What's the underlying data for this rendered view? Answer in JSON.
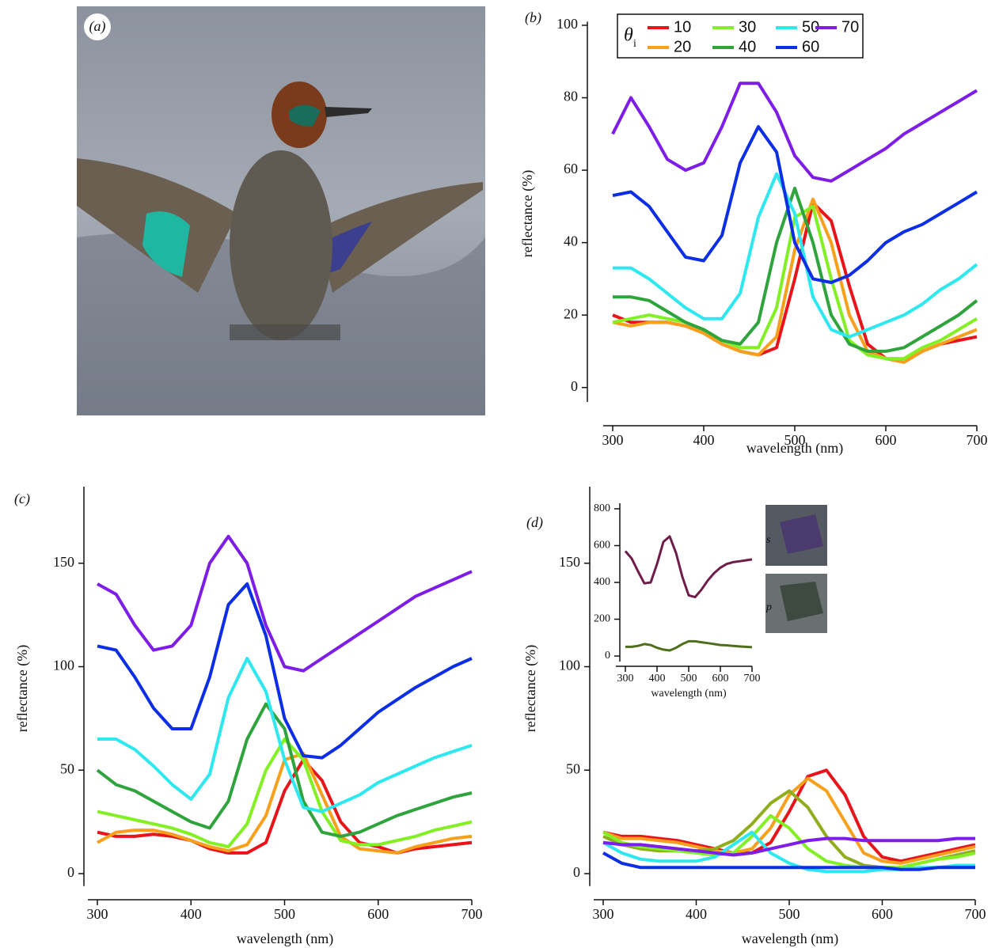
{
  "photo_label": "(a)",
  "chart_data": [
    {
      "type": "line",
      "label": "(b)",
      "xlabel": "wavelength (nm)",
      "ylabel": "reflectance (%)",
      "legend_title": "θ",
      "legend_title_subscript": "i",
      "xlim": [
        300,
        700
      ],
      "ylim": [
        -4,
        101
      ],
      "xticks": [
        300,
        400,
        500,
        600,
        700
      ],
      "yticks": [
        0,
        20,
        40,
        60,
        80,
        100
      ],
      "x": [
        300,
        320,
        340,
        360,
        380,
        400,
        420,
        440,
        460,
        480,
        500,
        520,
        540,
        560,
        580,
        600,
        620,
        640,
        660,
        680,
        700
      ],
      "series": [
        {
          "name": "10",
          "color": "#e8141a",
          "values": [
            20,
            18,
            18,
            18,
            17,
            15,
            12,
            10,
            9,
            11,
            30,
            51,
            46,
            28,
            12,
            8,
            7,
            10,
            12,
            13,
            14
          ]
        },
        {
          "name": "20",
          "color": "#f8a01c",
          "values": [
            18,
            17,
            18,
            18,
            17,
            15,
            12,
            10,
            9,
            14,
            38,
            52,
            40,
            20,
            10,
            8,
            7,
            10,
            12,
            14,
            16
          ]
        },
        {
          "name": "30",
          "color": "#82f023",
          "values": [
            18,
            19,
            20,
            19,
            18,
            16,
            13,
            11,
            11,
            22,
            47,
            50,
            30,
            13,
            9,
            8,
            8,
            11,
            13,
            16,
            19
          ]
        },
        {
          "name": "40",
          "color": "#2fa33c",
          "values": [
            25,
            25,
            24,
            21,
            18,
            16,
            13,
            12,
            18,
            40,
            55,
            40,
            20,
            12,
            10,
            10,
            11,
            14,
            17,
            20,
            24
          ]
        },
        {
          "name": "50",
          "color": "#2ee8f0",
          "values": [
            33,
            33,
            30,
            26,
            22,
            19,
            19,
            26,
            47,
            59,
            48,
            25,
            16,
            14,
            16,
            18,
            20,
            23,
            27,
            30,
            34
          ]
        },
        {
          "name": "60",
          "color": "#0b2ee6",
          "values": [
            53,
            54,
            50,
            43,
            36,
            35,
            42,
            62,
            72,
            65,
            40,
            30,
            29,
            31,
            35,
            40,
            43,
            45,
            48,
            51,
            54
          ]
        },
        {
          "name": "70",
          "color": "#7e1de8",
          "values": [
            70,
            80,
            72,
            63,
            60,
            62,
            72,
            84,
            84,
            76,
            64,
            58,
            57,
            60,
            63,
            66,
            70,
            73,
            76,
            79,
            82
          ]
        }
      ]
    },
    {
      "type": "line",
      "label": "(c)",
      "xlabel": "wavelength (nm)",
      "ylabel": "reflectance (%)",
      "xlim": [
        300,
        700
      ],
      "ylim": [
        -6,
        187
      ],
      "xticks": [
        300,
        400,
        500,
        600,
        700
      ],
      "yticks": [
        0,
        50,
        100,
        150
      ],
      "x": [
        300,
        320,
        340,
        360,
        380,
        400,
        420,
        440,
        460,
        480,
        500,
        520,
        540,
        560,
        580,
        600,
        620,
        640,
        660,
        680,
        700
      ],
      "series": [
        {
          "color": "#e8141a",
          "values": [
            20,
            18,
            18,
            19,
            18,
            16,
            12,
            10,
            10,
            15,
            40,
            55,
            45,
            25,
            15,
            13,
            10,
            12,
            13,
            14,
            15
          ]
        },
        {
          "color": "#f8a01c",
          "values": [
            15,
            20,
            21,
            21,
            19,
            16,
            13,
            11,
            14,
            28,
            55,
            58,
            38,
            18,
            12,
            11,
            10,
            13,
            15,
            17,
            18
          ]
        },
        {
          "color": "#82f023",
          "values": [
            30,
            28,
            26,
            24,
            22,
            19,
            15,
            13,
            24,
            50,
            65,
            55,
            30,
            16,
            14,
            14,
            16,
            18,
            21,
            23,
            25
          ]
        },
        {
          "color": "#2fa33c",
          "values": [
            50,
            43,
            40,
            35,
            30,
            25,
            22,
            35,
            65,
            82,
            70,
            35,
            20,
            18,
            20,
            24,
            28,
            31,
            34,
            37,
            39
          ]
        },
        {
          "color": "#2ee8f0",
          "values": [
            65,
            65,
            60,
            52,
            43,
            36,
            48,
            85,
            104,
            88,
            55,
            32,
            30,
            34,
            38,
            44,
            48,
            52,
            56,
            59,
            62
          ]
        },
        {
          "color": "#0b2ee6",
          "values": [
            110,
            108,
            95,
            80,
            70,
            70,
            95,
            130,
            140,
            115,
            75,
            57,
            56,
            62,
            70,
            78,
            84,
            90,
            95,
            100,
            104
          ]
        },
        {
          "color": "#7e1de8",
          "values": [
            140,
            135,
            120,
            108,
            110,
            120,
            150,
            163,
            150,
            120,
            100,
            98,
            104,
            110,
            116,
            122,
            128,
            134,
            138,
            142,
            146
          ]
        }
      ]
    },
    {
      "type": "line",
      "label": "(d)",
      "xlabel": "wavelength (nm)",
      "ylabel": "reflectance (%)",
      "xlim": [
        300,
        700
      ],
      "ylim": [
        -6,
        187
      ],
      "xticks": [
        300,
        400,
        500,
        600,
        700
      ],
      "yticks": [
        0,
        50,
        100,
        150
      ],
      "x": [
        300,
        320,
        340,
        360,
        380,
        400,
        420,
        440,
        460,
        480,
        500,
        520,
        540,
        560,
        580,
        600,
        620,
        640,
        660,
        680,
        700
      ],
      "series": [
        {
          "color": "#e8141a",
          "values": [
            20,
            18,
            18,
            17,
            16,
            14,
            12,
            10,
            10,
            15,
            30,
            47,
            50,
            38,
            18,
            8,
            6,
            8,
            10,
            12,
            14
          ]
        },
        {
          "color": "#f8a01c",
          "values": [
            20,
            17,
            17,
            16,
            15,
            13,
            11,
            10,
            12,
            22,
            38,
            46,
            40,
            25,
            10,
            6,
            5,
            7,
            9,
            11,
            13
          ]
        },
        {
          "color": "#8fae1c",
          "values": [
            18,
            14,
            12,
            11,
            11,
            11,
            12,
            16,
            24,
            34,
            40,
            32,
            18,
            8,
            4,
            3,
            3,
            5,
            7,
            9,
            11
          ]
        },
        {
          "color": "#82f023",
          "values": [
            20,
            15,
            13,
            12,
            11,
            10,
            9,
            10,
            18,
            28,
            22,
            12,
            6,
            4,
            3,
            3,
            3,
            5,
            7,
            8,
            10
          ]
        },
        {
          "color": "#2ee8f0",
          "values": [
            15,
            10,
            7,
            6,
            6,
            6,
            8,
            14,
            20,
            10,
            5,
            2,
            1,
            1,
            1,
            2,
            2,
            3,
            3,
            4,
            4
          ]
        },
        {
          "color": "#0b2ee6",
          "values": [
            10,
            5,
            3,
            3,
            3,
            3,
            3,
            3,
            3,
            3,
            3,
            3,
            3,
            3,
            3,
            3,
            2,
            2,
            3,
            3,
            3
          ]
        },
        {
          "color": "#7e1de8",
          "values": [
            15,
            14,
            14,
            13,
            12,
            11,
            10,
            9,
            10,
            12,
            14,
            16,
            17,
            17,
            16,
            16,
            16,
            16,
            16,
            17,
            17
          ]
        }
      ]
    },
    {
      "type": "line",
      "xlabel": "wavelength (nm)",
      "xlim": [
        300,
        700
      ],
      "ylim": [
        -30,
        830
      ],
      "xticks": [
        300,
        400,
        500,
        600,
        700
      ],
      "yticks": [
        0,
        200,
        400,
        600,
        800
      ],
      "x": [
        300,
        320,
        340,
        360,
        380,
        400,
        420,
        440,
        460,
        480,
        500,
        520,
        540,
        560,
        580,
        600,
        620,
        640,
        660,
        680,
        700
      ],
      "series": [
        {
          "name": "s",
          "color": "#6e1d48",
          "values": [
            570,
            530,
            460,
            395,
            400,
            500,
            620,
            650,
            560,
            430,
            330,
            320,
            360,
            410,
            450,
            480,
            500,
            510,
            515,
            520,
            525
          ]
        },
        {
          "name": "p",
          "color": "#4f6f1c",
          "values": [
            50,
            50,
            55,
            65,
            60,
            45,
            35,
            30,
            45,
            65,
            80,
            80,
            75,
            70,
            65,
            60,
            58,
            55,
            52,
            50,
            48
          ]
        }
      ]
    }
  ]
}
